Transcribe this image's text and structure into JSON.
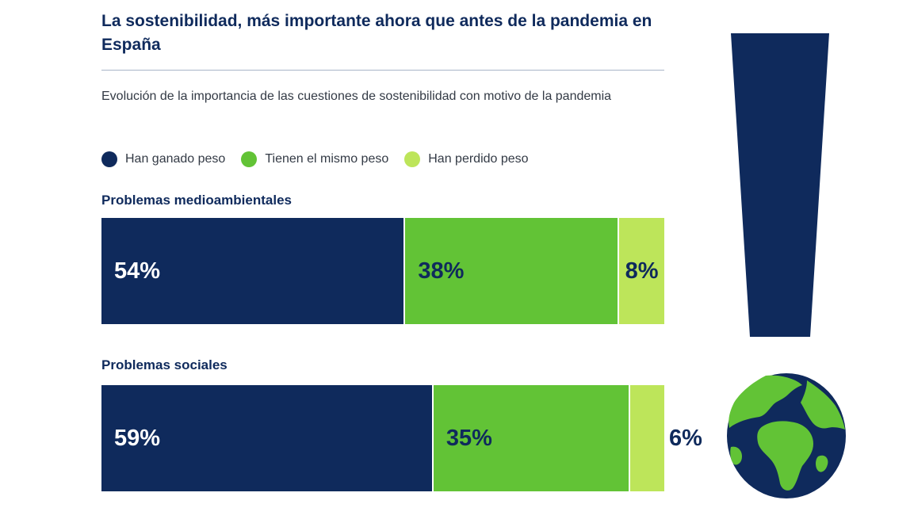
{
  "title": "La sostenibilidad, más importante ahora que antes de la pandemia en España",
  "subtitle": "Evolución de la importancia de las cuestiones de sostenibilidad con motivo de la pandemia",
  "colors": {
    "dark_navy": "#0f2a5c",
    "medium_green": "#62c336",
    "light_green": "#bde55a"
  },
  "chart_data": {
    "type": "bar",
    "stacked": "100%",
    "orientation": "horizontal",
    "title": "La sostenibilidad, más importante ahora que antes de la pandemia en España",
    "subtitle": "Evolución de la importancia de las cuestiones de sostenibilidad con motivo de la pandemia",
    "categories": [
      "Problemas medioambientales",
      "Problemas sociales"
    ],
    "series": [
      {
        "name": "Han ganado peso",
        "color": "#0f2a5c",
        "values": [
          54,
          59
        ],
        "labels": [
          "54%",
          "59%"
        ]
      },
      {
        "name": "Tienen el mismo peso",
        "color": "#62c336",
        "values": [
          38,
          35
        ],
        "labels": [
          "38%",
          "35%"
        ]
      },
      {
        "name": "Han perdido peso",
        "color": "#bde55a",
        "values": [
          8,
          6
        ],
        "labels": [
          "8%",
          "6%"
        ]
      }
    ],
    "legend_position": "top-left",
    "grid": false
  },
  "icons": [
    "exclamation-icon",
    "globe-icon"
  ]
}
